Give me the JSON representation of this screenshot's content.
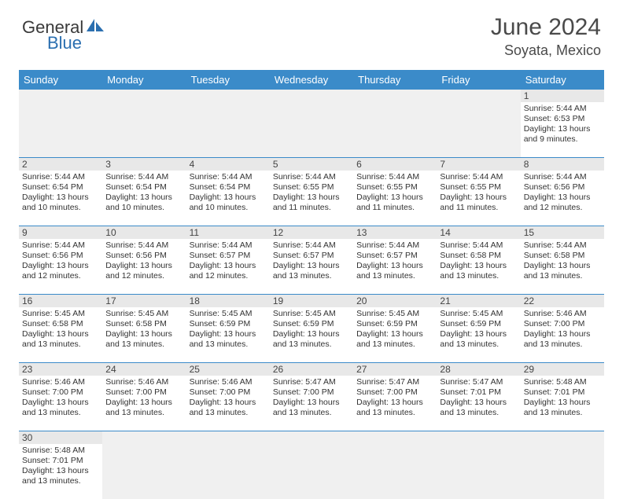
{
  "logo": {
    "part1": "General",
    "part2": "Blue"
  },
  "title": "June 2024",
  "location": "Soyata, Mexico",
  "day_headers": [
    "Sunday",
    "Monday",
    "Tuesday",
    "Wednesday",
    "Thursday",
    "Friday",
    "Saturday"
  ],
  "colors": {
    "header_bg": "#3b8bc9",
    "header_text": "#ffffff",
    "daynum_bg": "#e8e8e8",
    "empty_bg": "#f0f0f0",
    "border": "#3b8bc9",
    "text": "#333333",
    "title_text": "#4a4a4a"
  },
  "weeks": [
    [
      null,
      null,
      null,
      null,
      null,
      null,
      {
        "n": "1",
        "sunrise": "5:44 AM",
        "sunset": "6:53 PM",
        "daylight": "13 hours and 9 minutes."
      }
    ],
    [
      {
        "n": "2",
        "sunrise": "5:44 AM",
        "sunset": "6:54 PM",
        "daylight": "13 hours and 10 minutes."
      },
      {
        "n": "3",
        "sunrise": "5:44 AM",
        "sunset": "6:54 PM",
        "daylight": "13 hours and 10 minutes."
      },
      {
        "n": "4",
        "sunrise": "5:44 AM",
        "sunset": "6:54 PM",
        "daylight": "13 hours and 10 minutes."
      },
      {
        "n": "5",
        "sunrise": "5:44 AM",
        "sunset": "6:55 PM",
        "daylight": "13 hours and 11 minutes."
      },
      {
        "n": "6",
        "sunrise": "5:44 AM",
        "sunset": "6:55 PM",
        "daylight": "13 hours and 11 minutes."
      },
      {
        "n": "7",
        "sunrise": "5:44 AM",
        "sunset": "6:55 PM",
        "daylight": "13 hours and 11 minutes."
      },
      {
        "n": "8",
        "sunrise": "5:44 AM",
        "sunset": "6:56 PM",
        "daylight": "13 hours and 12 minutes."
      }
    ],
    [
      {
        "n": "9",
        "sunrise": "5:44 AM",
        "sunset": "6:56 PM",
        "daylight": "13 hours and 12 minutes."
      },
      {
        "n": "10",
        "sunrise": "5:44 AM",
        "sunset": "6:56 PM",
        "daylight": "13 hours and 12 minutes."
      },
      {
        "n": "11",
        "sunrise": "5:44 AM",
        "sunset": "6:57 PM",
        "daylight": "13 hours and 12 minutes."
      },
      {
        "n": "12",
        "sunrise": "5:44 AM",
        "sunset": "6:57 PM",
        "daylight": "13 hours and 13 minutes."
      },
      {
        "n": "13",
        "sunrise": "5:44 AM",
        "sunset": "6:57 PM",
        "daylight": "13 hours and 13 minutes."
      },
      {
        "n": "14",
        "sunrise": "5:44 AM",
        "sunset": "6:58 PM",
        "daylight": "13 hours and 13 minutes."
      },
      {
        "n": "15",
        "sunrise": "5:44 AM",
        "sunset": "6:58 PM",
        "daylight": "13 hours and 13 minutes."
      }
    ],
    [
      {
        "n": "16",
        "sunrise": "5:45 AM",
        "sunset": "6:58 PM",
        "daylight": "13 hours and 13 minutes."
      },
      {
        "n": "17",
        "sunrise": "5:45 AM",
        "sunset": "6:58 PM",
        "daylight": "13 hours and 13 minutes."
      },
      {
        "n": "18",
        "sunrise": "5:45 AM",
        "sunset": "6:59 PM",
        "daylight": "13 hours and 13 minutes."
      },
      {
        "n": "19",
        "sunrise": "5:45 AM",
        "sunset": "6:59 PM",
        "daylight": "13 hours and 13 minutes."
      },
      {
        "n": "20",
        "sunrise": "5:45 AM",
        "sunset": "6:59 PM",
        "daylight": "13 hours and 13 minutes."
      },
      {
        "n": "21",
        "sunrise": "5:45 AM",
        "sunset": "6:59 PM",
        "daylight": "13 hours and 13 minutes."
      },
      {
        "n": "22",
        "sunrise": "5:46 AM",
        "sunset": "7:00 PM",
        "daylight": "13 hours and 13 minutes."
      }
    ],
    [
      {
        "n": "23",
        "sunrise": "5:46 AM",
        "sunset": "7:00 PM",
        "daylight": "13 hours and 13 minutes."
      },
      {
        "n": "24",
        "sunrise": "5:46 AM",
        "sunset": "7:00 PM",
        "daylight": "13 hours and 13 minutes."
      },
      {
        "n": "25",
        "sunrise": "5:46 AM",
        "sunset": "7:00 PM",
        "daylight": "13 hours and 13 minutes."
      },
      {
        "n": "26",
        "sunrise": "5:47 AM",
        "sunset": "7:00 PM",
        "daylight": "13 hours and 13 minutes."
      },
      {
        "n": "27",
        "sunrise": "5:47 AM",
        "sunset": "7:00 PM",
        "daylight": "13 hours and 13 minutes."
      },
      {
        "n": "28",
        "sunrise": "5:47 AM",
        "sunset": "7:01 PM",
        "daylight": "13 hours and 13 minutes."
      },
      {
        "n": "29",
        "sunrise": "5:48 AM",
        "sunset": "7:01 PM",
        "daylight": "13 hours and 13 minutes."
      }
    ],
    [
      {
        "n": "30",
        "sunrise": "5:48 AM",
        "sunset": "7:01 PM",
        "daylight": "13 hours and 13 minutes."
      },
      null,
      null,
      null,
      null,
      null,
      null
    ]
  ],
  "labels": {
    "sunrise": "Sunrise: ",
    "sunset": "Sunset: ",
    "daylight": "Daylight: "
  }
}
